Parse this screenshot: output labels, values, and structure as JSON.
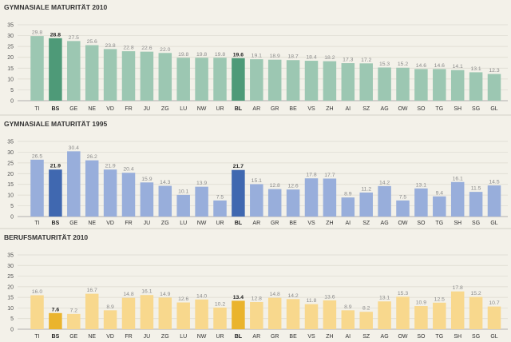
{
  "chart_data": [
    {
      "type": "bar",
      "title": "GYMNASIALE MATURITÄT 2010",
      "categories": [
        "TI",
        "BS",
        "GE",
        "NE",
        "VD",
        "FR",
        "JU",
        "ZG",
        "LU",
        "NW",
        "UR",
        "BL",
        "AR",
        "GR",
        "BE",
        "VS",
        "ZH",
        "AI",
        "SZ",
        "AG",
        "OW",
        "SO",
        "TG",
        "SH",
        "SG",
        "GL"
      ],
      "values": [
        29.8,
        28.8,
        27.5,
        25.6,
        23.8,
        22.8,
        22.6,
        22.0,
        19.8,
        19.8,
        19.8,
        19.6,
        19.1,
        18.9,
        18.7,
        18.4,
        18.2,
        17.3,
        17.2,
        15.3,
        15.2,
        14.6,
        14.6,
        14.1,
        13.1,
        12.3
      ],
      "value_labels": [
        "29.8",
        "28.8",
        "27.5",
        "25.6",
        "23.8",
        "22.8",
        "22.6",
        "22.0",
        "19.8",
        "19.8",
        "19.8",
        "19.6",
        "19.1",
        "18.9",
        "18.7",
        "18.4",
        "18.2",
        "17.3",
        "17.2",
        "15.3",
        "15.2",
        "14.6",
        "14.6",
        "14.1",
        "13.1",
        "12.3"
      ],
      "highlight": [
        "BS",
        "BL"
      ],
      "yticks": [
        "0",
        "5",
        "10",
        "15",
        "20",
        "25",
        "30",
        "35"
      ],
      "ylim": [
        0,
        35
      ],
      "colors": {
        "bar": "#9cc7b2",
        "highlight": "#4e9a78"
      }
    },
    {
      "type": "bar",
      "title": "GYMNASIALE MATURITÄT 1995",
      "categories": [
        "TI",
        "BS",
        "GE",
        "NE",
        "VD",
        "FR",
        "JU",
        "ZG",
        "LU",
        "NW",
        "UR",
        "BL",
        "AR",
        "GR",
        "BE",
        "VS",
        "ZH",
        "AI",
        "SZ",
        "AG",
        "OW",
        "SO",
        "TG",
        "SH",
        "SG",
        "GL"
      ],
      "values": [
        26.5,
        21.9,
        30.4,
        26.2,
        21.9,
        20.4,
        15.9,
        14.3,
        10.1,
        13.9,
        7.5,
        21.7,
        15.1,
        12.8,
        12.6,
        17.8,
        17.7,
        8.9,
        11.2,
        14.2,
        7.5,
        13.1,
        9.4,
        16.1,
        11.5,
        14.5
      ],
      "value_labels": [
        "26.5",
        "21.9",
        "30.4",
        "26.2",
        "21.9",
        "20.4",
        "15.9",
        "14.3",
        "10.1",
        "13.9",
        "7.5",
        "21.7",
        "15.1",
        "12.8",
        "12.6",
        "17.8",
        "17.7",
        "8.9",
        "11.2",
        "14.2",
        "7.5",
        "13.1",
        "9.4",
        "16.1",
        "11.5",
        "14.5"
      ],
      "highlight": [
        "BS",
        "BL"
      ],
      "yticks": [
        "0",
        "5",
        "10",
        "15",
        "20",
        "25",
        "30",
        "35"
      ],
      "ylim": [
        0,
        35
      ],
      "colors": {
        "bar": "#98aedb",
        "highlight": "#4068b0"
      }
    },
    {
      "type": "bar",
      "title": "BERUFSMATURITÄT 2010",
      "categories": [
        "TI",
        "BS",
        "GE",
        "NE",
        "VD",
        "FR",
        "JU",
        "ZG",
        "LU",
        "NW",
        "UR",
        "BL",
        "AR",
        "GR",
        "BE",
        "VS",
        "ZH",
        "AI",
        "SZ",
        "AG",
        "OW",
        "SO",
        "TG",
        "SH",
        "SG",
        "GL"
      ],
      "values": [
        16.0,
        7.6,
        7.2,
        16.7,
        8.9,
        14.8,
        16.1,
        14.9,
        12.6,
        14.0,
        10.2,
        13.4,
        12.8,
        14.8,
        14.2,
        11.8,
        13.6,
        8.9,
        8.2,
        13.1,
        15.3,
        10.9,
        12.5,
        17.8,
        15.2,
        10.7
      ],
      "value_labels": [
        "16.0",
        "7.6",
        "7.2",
        "16.7",
        "8.9",
        "14.8",
        "16.1",
        "14.9",
        "12.6",
        "14.0",
        "10.2",
        "13.4",
        "12.8",
        "14.8",
        "14.2",
        "11.8",
        "13.6",
        "8.9",
        "8.2",
        "13.1",
        "15.3",
        "10.9",
        "12.5",
        "17.8",
        "15.2",
        "10.7"
      ],
      "highlight": [
        "BS",
        "BL"
      ],
      "yticks": [
        "0",
        "5",
        "10",
        "15",
        "20",
        "25",
        "30",
        "35"
      ],
      "ylim": [
        0,
        35
      ],
      "colors": {
        "bar": "#f8d88d",
        "highlight": "#eab42d"
      }
    }
  ]
}
